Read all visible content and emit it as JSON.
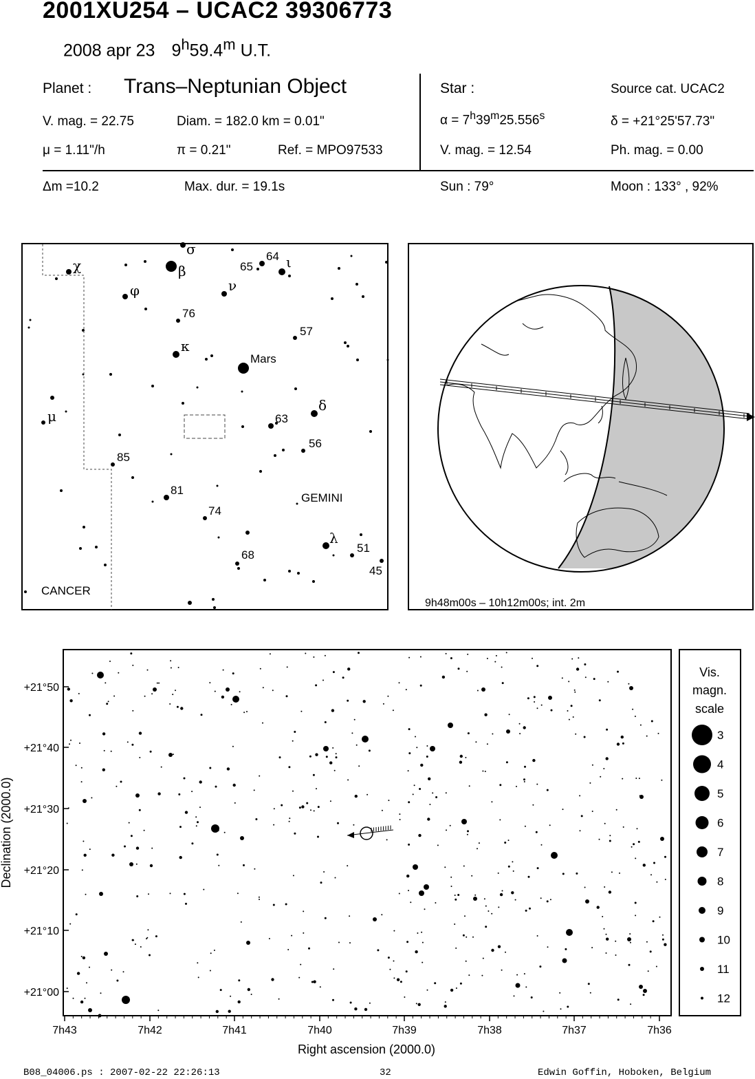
{
  "header": {
    "title": "2001XU254  –  UCAC2 39306773",
    "date": "2008 apr 23",
    "time_h": "9",
    "time_h_sup": "h",
    "time_m": "59.4",
    "time_m_sup": "m",
    "time_ut": "U.T."
  },
  "planet": {
    "label": "Planet :",
    "type": "Trans–Neptunian Object",
    "vmag": "V. mag. = 22.75",
    "diam": "Diam. = 182.0 km = 0.01\"",
    "mu": "μ =  1.11\"/h",
    "pi": "π =  0.21\"",
    "ref": "Ref. = MPO97533",
    "dm": "Δm =10.2",
    "maxdur": "Max. dur. = 19.1s"
  },
  "star": {
    "label": "Star :",
    "source": "Source cat.  UCAC2",
    "alpha_prefix": "α =  7",
    "alpha_h": "h",
    "alpha_mid": "39",
    "alpha_m": "m",
    "alpha_sec": "25.556",
    "alpha_s": "s",
    "delta": "δ = +21°25'57.73\"",
    "vmag": "V. mag. = 12.54",
    "phmag": "Ph. mag. =  0.00",
    "sun": "Sun :  79°",
    "moon": "Moon : 133° , 92%"
  },
  "finder": {
    "labels": [
      {
        "t": "σ",
        "g": true
      },
      {
        "t": "χ",
        "g": true
      },
      {
        "t": "β",
        "g": true
      },
      {
        "t": "65",
        "g": false
      },
      {
        "t": "64",
        "g": false
      },
      {
        "t": "ι",
        "g": true
      },
      {
        "t": "φ",
        "g": true
      },
      {
        "t": "ν",
        "g": true
      },
      {
        "t": "76",
        "g": false
      },
      {
        "t": "57",
        "g": false
      },
      {
        "t": "κ",
        "g": true
      },
      {
        "t": "Mars",
        "g": false
      },
      {
        "t": "μ",
        "g": true
      },
      {
        "t": "δ",
        "g": true
      },
      {
        "t": "63",
        "g": false
      },
      {
        "t": "56",
        "g": false
      },
      {
        "t": "85",
        "g": false
      },
      {
        "t": "81",
        "g": false
      },
      {
        "t": "GEMINI",
        "g": false
      },
      {
        "t": "74",
        "g": false
      },
      {
        "t": "λ",
        "g": true
      },
      {
        "t": "51",
        "g": false
      },
      {
        "t": "68",
        "g": false
      },
      {
        "t": "45",
        "g": false
      },
      {
        "t": "CANCER",
        "g": false
      }
    ]
  },
  "globe": {
    "caption": "9h48m00s – 10h12m00s; int.  2m"
  },
  "starmap": {
    "y_ticks": [
      "+21°50",
      "+21°40",
      "+21°30",
      "+21°20",
      "+21°10",
      "+21°00"
    ],
    "x_ticks": [
      "7h43",
      "7h42",
      "7h41",
      "7h40",
      "7h39",
      "7h38",
      "7h37",
      "7h36"
    ],
    "xlabel": "Right ascension (2000.0)",
    "ylabel": "Declination (2000.0)"
  },
  "scale": {
    "title1": "Vis.",
    "title2": "magn.",
    "title3": "scale",
    "mags": [
      "3",
      "4",
      "5",
      "6",
      "7",
      "8",
      "9",
      "10",
      "11",
      "12"
    ]
  },
  "footer": {
    "file": "B08_04006.ps : 2007-02-22 22:26:13",
    "page": "32",
    "author": "Edwin Goffin, Hoboken, Belgium"
  }
}
